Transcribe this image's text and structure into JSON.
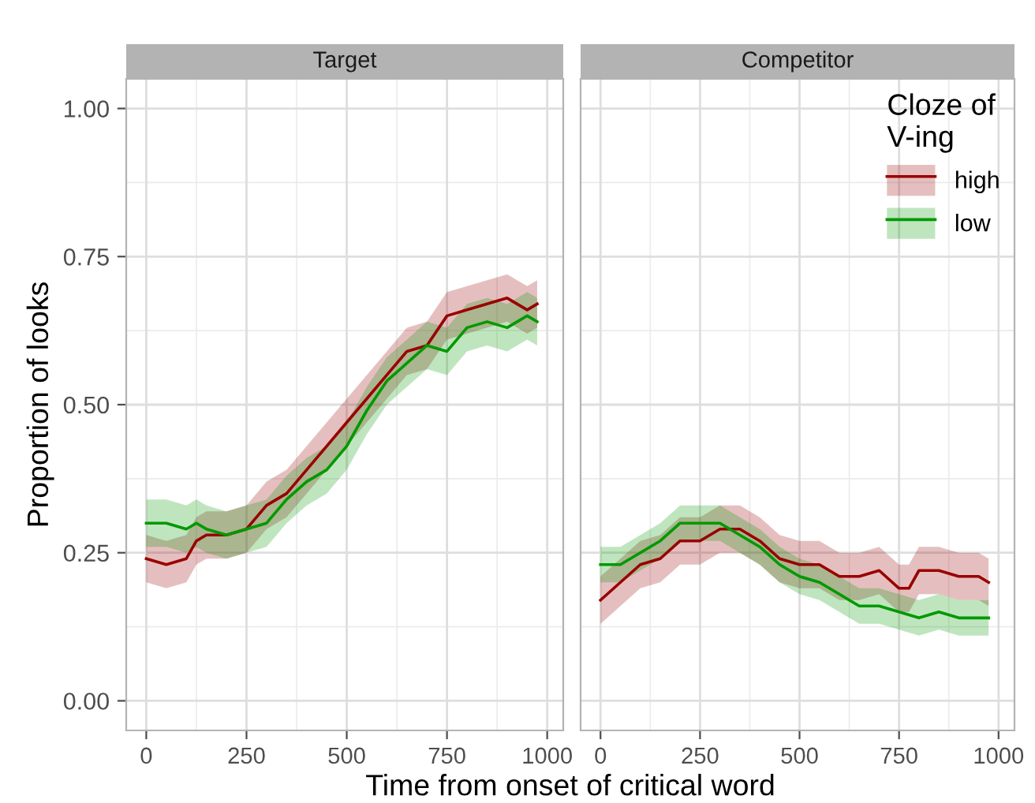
{
  "chart_data": [
    {
      "type": "line",
      "title": "Target",
      "xlabel": "Time from onset of critical word",
      "ylabel": "Proportion of looks",
      "xlim": [
        -50,
        1040
      ],
      "ylim": [
        -0.05,
        1.05
      ],
      "xticks": [
        0,
        250,
        500,
        750,
        1000
      ],
      "yticks": [
        {
          "value": 0,
          "label": "0.00"
        },
        {
          "value": 0.25,
          "label": "0.25"
        },
        {
          "value": 0.5,
          "label": "0.50"
        },
        {
          "value": 0.75,
          "label": "0.75"
        },
        {
          "value": 1,
          "label": "1.00"
        }
      ],
      "grid": true,
      "legend": false,
      "series": [
        {
          "color": "#990000",
          "x": [
            0,
            50,
            100,
            125,
            150,
            200,
            250,
            300,
            350,
            400,
            450,
            500,
            550,
            600,
            650,
            700,
            750,
            800,
            850,
            900,
            950,
            975
          ],
          "values": [
            0.24,
            0.23,
            0.24,
            0.27,
            0.28,
            0.28,
            0.29,
            0.33,
            0.35,
            0.39,
            0.43,
            0.47,
            0.51,
            0.55,
            0.59,
            0.6,
            0.65,
            0.66,
            0.67,
            0.68,
            0.66,
            0.67
          ],
          "lower": [
            0.2,
            0.19,
            0.2,
            0.23,
            0.24,
            0.24,
            0.25,
            0.29,
            0.31,
            0.35,
            0.39,
            0.43,
            0.47,
            0.51,
            0.55,
            0.56,
            0.61,
            0.62,
            0.63,
            0.64,
            0.62,
            0.63
          ],
          "upper": [
            0.28,
            0.27,
            0.28,
            0.31,
            0.32,
            0.32,
            0.33,
            0.37,
            0.39,
            0.43,
            0.47,
            0.51,
            0.55,
            0.59,
            0.63,
            0.64,
            0.69,
            0.7,
            0.71,
            0.72,
            0.7,
            0.71
          ]
        },
        {
          "color": "#009900",
          "x": [
            0,
            50,
            100,
            125,
            150,
            200,
            250,
            300,
            350,
            400,
            450,
            500,
            550,
            600,
            650,
            700,
            750,
            800,
            850,
            900,
            950,
            975
          ],
          "values": [
            0.3,
            0.3,
            0.29,
            0.3,
            0.29,
            0.28,
            0.29,
            0.3,
            0.34,
            0.37,
            0.39,
            0.43,
            0.49,
            0.54,
            0.57,
            0.6,
            0.59,
            0.63,
            0.64,
            0.63,
            0.65,
            0.64
          ],
          "lower": [
            0.26,
            0.26,
            0.25,
            0.26,
            0.25,
            0.24,
            0.25,
            0.26,
            0.3,
            0.33,
            0.35,
            0.39,
            0.45,
            0.5,
            0.53,
            0.56,
            0.55,
            0.59,
            0.6,
            0.59,
            0.61,
            0.6
          ],
          "upper": [
            0.34,
            0.34,
            0.33,
            0.34,
            0.33,
            0.32,
            0.33,
            0.34,
            0.38,
            0.41,
            0.43,
            0.47,
            0.53,
            0.58,
            0.61,
            0.64,
            0.63,
            0.67,
            0.68,
            0.67,
            0.69,
            0.68
          ]
        }
      ]
    },
    {
      "type": "line",
      "title": "Competitor",
      "legend_title": "Cloze of\nV-ing",
      "xlim": [
        -50,
        1040
      ],
      "ylim": [
        -0.05,
        1.05
      ],
      "xticks": [
        0,
        250,
        500,
        750,
        1000
      ],
      "yticks": [
        {
          "value": 0,
          "label": null
        },
        {
          "value": 0.25,
          "label": null
        },
        {
          "value": 0.5,
          "label": null
        },
        {
          "value": 0.75,
          "label": null
        },
        {
          "value": 1,
          "label": null
        }
      ],
      "tick_labels": "x",
      "grid": true,
      "legend": "top right",
      "series": [
        {
          "name": "high",
          "color": "#990000",
          "x": [
            0,
            50,
            100,
            150,
            200,
            250,
            300,
            350,
            400,
            450,
            500,
            550,
            600,
            650,
            700,
            750,
            775,
            800,
            850,
            900,
            950,
            975
          ],
          "values": [
            0.17,
            0.2,
            0.23,
            0.24,
            0.27,
            0.27,
            0.29,
            0.29,
            0.27,
            0.24,
            0.23,
            0.23,
            0.21,
            0.21,
            0.22,
            0.19,
            0.19,
            0.22,
            0.22,
            0.21,
            0.21,
            0.2
          ],
          "lower": [
            0.13,
            0.16,
            0.19,
            0.2,
            0.23,
            0.23,
            0.25,
            0.25,
            0.23,
            0.2,
            0.19,
            0.19,
            0.17,
            0.17,
            0.18,
            0.15,
            0.15,
            0.18,
            0.18,
            0.17,
            0.17,
            0.16
          ],
          "upper": [
            0.21,
            0.24,
            0.27,
            0.28,
            0.31,
            0.31,
            0.33,
            0.33,
            0.31,
            0.28,
            0.27,
            0.27,
            0.25,
            0.25,
            0.26,
            0.23,
            0.23,
            0.26,
            0.26,
            0.25,
            0.25,
            0.24
          ]
        },
        {
          "name": "low",
          "color": "#009900",
          "x": [
            0,
            50,
            100,
            150,
            200,
            250,
            300,
            350,
            400,
            450,
            500,
            550,
            600,
            650,
            700,
            750,
            800,
            850,
            900,
            950,
            975
          ],
          "values": [
            0.23,
            0.23,
            0.25,
            0.27,
            0.3,
            0.3,
            0.3,
            0.28,
            0.26,
            0.23,
            0.21,
            0.2,
            0.18,
            0.16,
            0.16,
            0.15,
            0.14,
            0.15,
            0.14,
            0.14,
            0.14
          ],
          "lower": [
            0.2,
            0.2,
            0.22,
            0.24,
            0.27,
            0.27,
            0.27,
            0.25,
            0.23,
            0.2,
            0.18,
            0.17,
            0.15,
            0.13,
            0.13,
            0.12,
            0.11,
            0.12,
            0.11,
            0.11,
            0.11
          ],
          "upper": [
            0.26,
            0.26,
            0.28,
            0.3,
            0.33,
            0.33,
            0.33,
            0.31,
            0.29,
            0.26,
            0.24,
            0.23,
            0.21,
            0.19,
            0.19,
            0.18,
            0.17,
            0.18,
            0.17,
            0.17,
            0.17
          ]
        }
      ]
    }
  ]
}
